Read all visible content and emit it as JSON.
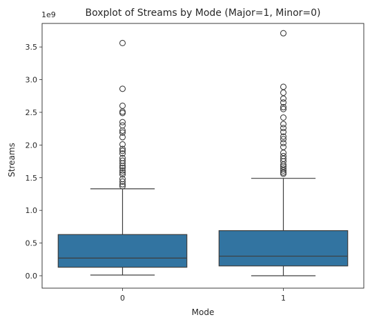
{
  "chart_data": {
    "type": "box",
    "title": "Boxplot of Streams by Mode (Major=1, Minor=0)",
    "xlabel": "Mode",
    "ylabel": "Streams",
    "y_offset_label": "1e9",
    "ylim": [
      -0.19,
      3.86
    ],
    "yticks": [
      0.0,
      0.5,
      1.0,
      1.5,
      2.0,
      2.5,
      3.0,
      3.5
    ],
    "ytick_labels": [
      "0.0",
      "0.5",
      "1.0",
      "1.5",
      "2.0",
      "2.5",
      "3.0",
      "3.5"
    ],
    "categories": [
      "0",
      "1"
    ],
    "box_color": "#3274a1",
    "line_color": "#3d3d3d",
    "grid": false,
    "boxes": [
      {
        "category": "0",
        "whisker_low": 0.01,
        "q1": 0.13,
        "median": 0.27,
        "q3": 0.63,
        "whisker_high": 1.33,
        "outliers": [
          1.37,
          1.4,
          1.44,
          1.48,
          1.55,
          1.58,
          1.61,
          1.65,
          1.68,
          1.72,
          1.76,
          1.8,
          1.87,
          1.91,
          1.94,
          2.01,
          2.12,
          2.19,
          2.22,
          2.3,
          2.35,
          2.49,
          2.51,
          2.6,
          2.86,
          3.56
        ]
      },
      {
        "category": "1",
        "whisker_low": 0.0,
        "q1": 0.15,
        "median": 0.3,
        "q3": 0.69,
        "whisker_high": 1.49,
        "outliers": [
          1.56,
          1.58,
          1.61,
          1.64,
          1.67,
          1.7,
          1.75,
          1.79,
          1.83,
          1.88,
          1.97,
          2.03,
          2.09,
          2.13,
          2.2,
          2.26,
          2.32,
          2.42,
          2.55,
          2.58,
          2.65,
          2.71,
          2.8,
          2.89,
          3.71
        ]
      }
    ]
  }
}
